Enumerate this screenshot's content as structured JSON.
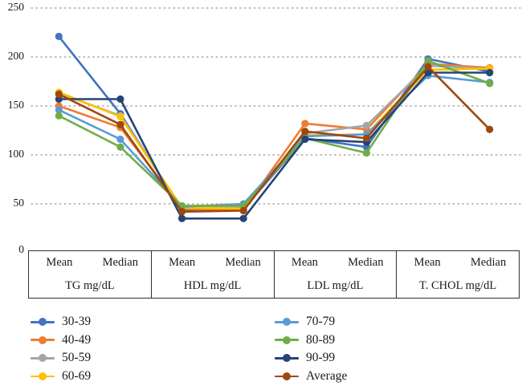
{
  "figure": {
    "background": "#ffffff",
    "grid_color": "#999999",
    "axis_text_color": "#1a1a1a",
    "table_border_color": "#2f2f2f"
  },
  "y_axis": {
    "tick_labels": [
      "0",
      "50",
      "100",
      "150",
      "200",
      "250"
    ]
  },
  "x_axis": {
    "stat_labels": [
      "Mean",
      "Median"
    ],
    "groups": [
      {
        "label": "TG mg/dL"
      },
      {
        "label": "HDL mg/dL"
      },
      {
        "label": "LDL mg/dL"
      },
      {
        "label": "T. CHOL mg/dL"
      }
    ]
  },
  "chart_data": {
    "type": "line",
    "title": "",
    "xlabel": "",
    "ylabel": "",
    "ylim": [
      0,
      250
    ],
    "yticks": [
      0,
      50,
      100,
      150,
      200,
      250
    ],
    "grid": "horizontal-dotted",
    "legend_position": "bottom-two-columns",
    "marker": "filled-circle",
    "categories": [
      "TG Mean",
      "TG Median",
      "HDL Mean",
      "HDL Median",
      "LDL Mean",
      "LDL Median",
      "T. CHOL Mean",
      "T. CHOL Median"
    ],
    "category_groups": [
      "TG mg/dL",
      "HDL mg/dL",
      "LDL mg/dL",
      "T. CHOL mg/dL"
    ],
    "series": [
      {
        "name": "30-39",
        "color": "#4472C4",
        "values": [
          221,
          142,
          44,
          45,
          117,
          108,
          198,
          185
        ]
      },
      {
        "name": "40-49",
        "color": "#ED7D31",
        "values": [
          150,
          128,
          45,
          44,
          132,
          126,
          193,
          189
        ]
      },
      {
        "name": "50-59",
        "color": "#A5A5A5",
        "values": [
          163,
          140,
          46,
          46,
          122,
          130,
          191,
          188
        ]
      },
      {
        "name": "60-69",
        "color": "#FFC000",
        "values": [
          164,
          139,
          46,
          45,
          120,
          121,
          187,
          188
        ]
      },
      {
        "name": "70-79",
        "color": "#5B9BD5",
        "values": [
          146,
          116,
          47,
          50,
          119,
          121,
          181,
          174
        ]
      },
      {
        "name": "80-89",
        "color": "#70AD47",
        "values": [
          140,
          108,
          48,
          48,
          117,
          102,
          196,
          173
        ]
      },
      {
        "name": "90-99",
        "color": "#264478",
        "values": [
          157,
          157,
          35,
          35,
          116,
          113,
          184,
          184
        ]
      },
      {
        "name": "Average",
        "color": "#9E480E",
        "values": [
          162,
          131,
          42,
          43,
          124,
          117,
          190,
          126
        ]
      }
    ]
  }
}
